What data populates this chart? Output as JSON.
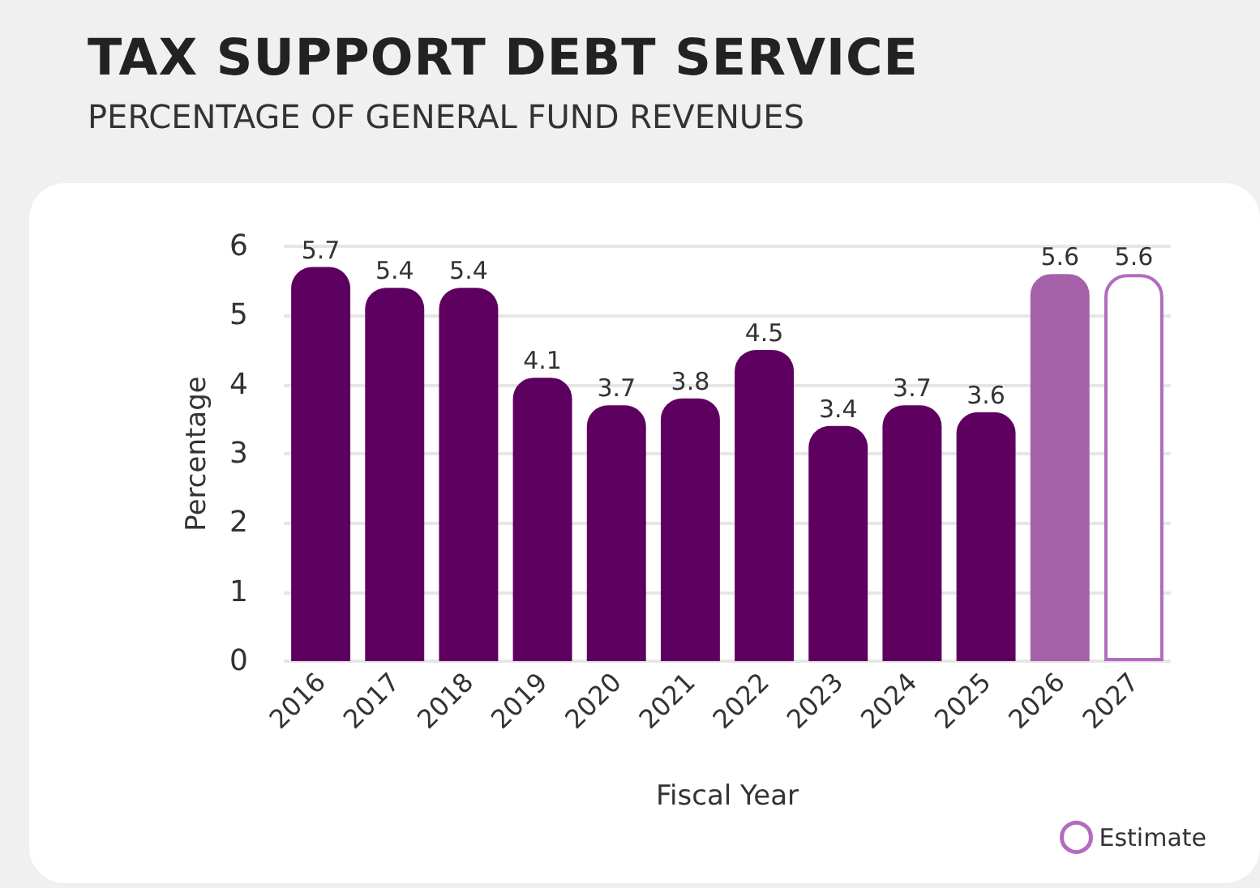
{
  "chart_data": {
    "type": "bar",
    "title": "TAX SUPPORT DEBT SERVICE",
    "subtitle": "PERCENTAGE OF GENERAL FUND REVENUES",
    "xlabel": "Fiscal Year",
    "ylabel": "Percentage",
    "categories": [
      "2016",
      "2017",
      "2018",
      "2019",
      "2020",
      "2021",
      "2022",
      "2023",
      "2024",
      "2025",
      "2026",
      "2027"
    ],
    "series": [
      {
        "colors": [
          "#5e0060",
          "#5e0060",
          "#5e0060",
          "#5e0060",
          "#5e0060",
          "#5e0060",
          "#5e0060",
          "#5e0060",
          "#5e0060",
          "#5e0060",
          "#a662a8",
          null
        ],
        "values": [
          5.7,
          5.4,
          5.4,
          4.1,
          3.7,
          3.8,
          4.5,
          3.4,
          3.7,
          3.6,
          5.6,
          null
        ]
      },
      {
        "name": "Estimate",
        "color": "#b36bbf",
        "values": [
          null,
          null,
          null,
          null,
          null,
          null,
          null,
          null,
          null,
          null,
          null,
          5.6
        ]
      }
    ],
    "ylim": [
      0,
      6
    ],
    "yticks": [
      0,
      1,
      2,
      3,
      4,
      5,
      6
    ],
    "grid": "y",
    "legend": "bottom right",
    "data_labels": true
  }
}
